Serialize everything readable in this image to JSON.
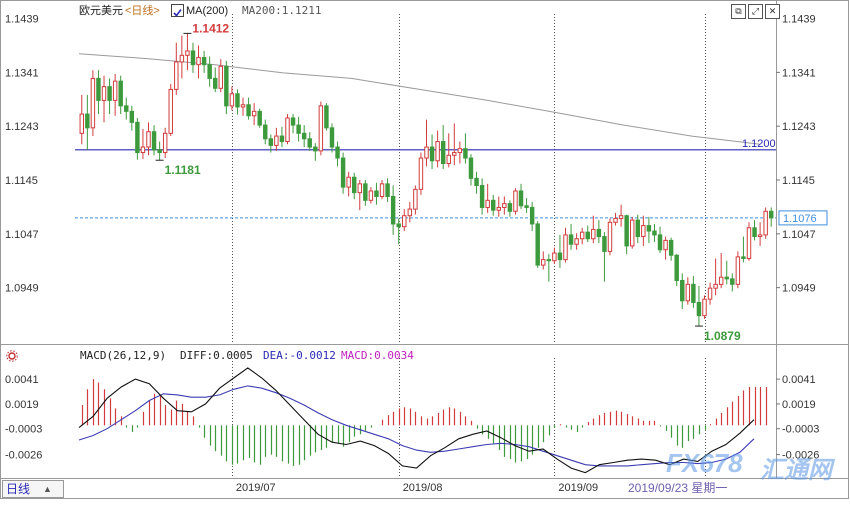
{
  "header": {
    "symbol": "欧元美元",
    "period_tag": "<日线>",
    "ma_button": "MA(200)",
    "ma_value_text": "MA200:1.1211"
  },
  "macd_header": {
    "label": "MACD(26,12,9)",
    "diff": "DIFF:0.0005",
    "dea": "DEA:-0.0012",
    "macd": "MACD:0.0034"
  },
  "footer": {
    "period_button": "日线",
    "current_date": "2019/09/23 星期一",
    "watermark_brand": "FX678",
    "watermark_cn": "汇通网"
  },
  "colors": {
    "up": "#d23c3c",
    "down": "#3c9a3c",
    "ma": "#9a9a9a",
    "hline": "#2a2ab4",
    "current_price": "#3f8fe0",
    "diff_line": "#111111",
    "dea_line": "#3c3cb4",
    "high_label": "#d23c3c",
    "low_label": "#3c9a3c"
  },
  "chart_data": [
    {
      "type": "candlestick",
      "title": "欧元美元 日线",
      "y_ticks": [
        "1.1439",
        "1.1341",
        "1.1243",
        "1.1145",
        "1.1047",
        "1.0949"
      ],
      "ylim": [
        1.085,
        1.144
      ],
      "x_ticks": [
        "2019/07",
        "2019/08",
        "2019/09"
      ],
      "x_tick_index": [
        27,
        57,
        85
      ],
      "vgrid_index": [
        27,
        57,
        85,
        112
      ],
      "annotations": {
        "high": {
          "label": "1.1412",
          "value": 1.1412,
          "index": 19
        },
        "low_early": {
          "label": "1.1181",
          "value": 1.1181,
          "index": 14
        },
        "low": {
          "label": "1.0879",
          "value": 1.0879,
          "index": 111
        },
        "h_line": {
          "label": "1.1200",
          "value": 1.12
        },
        "current": {
          "label": "1.1076",
          "value": 1.1076
        }
      },
      "ma200": [
        1.1375,
        1.1366,
        1.1355,
        1.134,
        1.133,
        1.131,
        1.129,
        1.1268,
        1.1245,
        1.1225,
        1.121
      ],
      "candles": [
        [
          1.123,
          1.13,
          1.121,
          1.1265
        ],
        [
          1.1265,
          1.13,
          1.12,
          1.124
        ],
        [
          1.124,
          1.1345,
          1.1225,
          1.133
        ],
        [
          1.133,
          1.1345,
          1.1265,
          1.129
        ],
        [
          1.129,
          1.1335,
          1.125,
          1.1315
        ],
        [
          1.1315,
          1.133,
          1.1265,
          1.129
        ],
        [
          1.129,
          1.1338,
          1.1262,
          1.1325
        ],
        [
          1.1325,
          1.1335,
          1.1265,
          1.128
        ],
        [
          1.128,
          1.1295,
          1.1255,
          1.127
        ],
        [
          1.127,
          1.128,
          1.1235,
          1.125
        ],
        [
          1.125,
          1.1258,
          1.1182,
          1.1195
        ],
        [
          1.1195,
          1.1238,
          1.1183,
          1.1205
        ],
        [
          1.1205,
          1.125,
          1.119,
          1.1233
        ],
        [
          1.1233,
          1.1245,
          1.119,
          1.12
        ],
        [
          1.12,
          1.1215,
          1.1181,
          1.1195
        ],
        [
          1.1195,
          1.124,
          1.1185,
          1.123
        ],
        [
          1.123,
          1.132,
          1.1225,
          1.131
        ],
        [
          1.131,
          1.1395,
          1.13,
          1.136
        ],
        [
          1.136,
          1.1408,
          1.133,
          1.1372
        ],
        [
          1.1372,
          1.1412,
          1.1345,
          1.138
        ],
        [
          1.138,
          1.1395,
          1.134,
          1.1355
        ],
        [
          1.1355,
          1.139,
          1.133,
          1.1368
        ],
        [
          1.1368,
          1.138,
          1.134,
          1.1355
        ],
        [
          1.1355,
          1.137,
          1.1315,
          1.133
        ],
        [
          1.133,
          1.135,
          1.1305,
          1.1312
        ],
        [
          1.1312,
          1.1365,
          1.1305,
          1.1352
        ],
        [
          1.1352,
          1.1362,
          1.1265,
          1.128
        ],
        [
          1.128,
          1.1315,
          1.1272,
          1.1302
        ],
        [
          1.1302,
          1.131,
          1.1264,
          1.1278
        ],
        [
          1.1278,
          1.1295,
          1.1262,
          1.1282
        ],
        [
          1.1282,
          1.1295,
          1.1255,
          1.1262
        ],
        [
          1.1262,
          1.1285,
          1.1245,
          1.127
        ],
        [
          1.127,
          1.1275,
          1.124,
          1.1245
        ],
        [
          1.1245,
          1.1255,
          1.121,
          1.122
        ],
        [
          1.122,
          1.1228,
          1.1195,
          1.1208
        ],
        [
          1.1208,
          1.124,
          1.1198,
          1.1225
        ],
        [
          1.1225,
          1.1242,
          1.1205,
          1.1215
        ],
        [
          1.1215,
          1.1265,
          1.121,
          1.1258
        ],
        [
          1.1258,
          1.1265,
          1.123,
          1.1245
        ],
        [
          1.1245,
          1.126,
          1.1215,
          1.123
        ],
        [
          1.123,
          1.1245,
          1.1205,
          1.122
        ],
        [
          1.122,
          1.1232,
          1.1198,
          1.1205
        ],
        [
          1.1205,
          1.1212,
          1.118,
          1.1198
        ],
        [
          1.1198,
          1.1288,
          1.119,
          1.128
        ],
        [
          1.128,
          1.1285,
          1.1235,
          1.124
        ],
        [
          1.124,
          1.1248,
          1.1195,
          1.1205
        ],
        [
          1.1205,
          1.1215,
          1.117,
          1.1185
        ],
        [
          1.1185,
          1.1195,
          1.112,
          1.1132
        ],
        [
          1.1132,
          1.116,
          1.1115,
          1.115
        ],
        [
          1.115,
          1.1158,
          1.111,
          1.1122
        ],
        [
          1.1122,
          1.1145,
          1.109,
          1.1138
        ],
        [
          1.1138,
          1.1145,
          1.1098,
          1.1108
        ],
        [
          1.1108,
          1.1132,
          1.1102,
          1.1125
        ],
        [
          1.1125,
          1.114,
          1.11,
          1.1115
        ],
        [
          1.1115,
          1.1145,
          1.111,
          1.1138
        ],
        [
          1.1138,
          1.1148,
          1.1105,
          1.1115
        ],
        [
          1.1115,
          1.1135,
          1.1045,
          1.1065
        ],
        [
          1.1065,
          1.1075,
          1.1028,
          1.106
        ],
        [
          1.106,
          1.1092,
          1.1052,
          1.108
        ],
        [
          1.108,
          1.1105,
          1.1068,
          1.1092
        ],
        [
          1.1092,
          1.1135,
          1.1082,
          1.1128
        ],
        [
          1.1128,
          1.1195,
          1.1118,
          1.1185
        ],
        [
          1.1185,
          1.1255,
          1.117,
          1.1205
        ],
        [
          1.1205,
          1.1228,
          1.1165,
          1.118
        ],
        [
          1.118,
          1.1235,
          1.1168,
          1.1215
        ],
        [
          1.1215,
          1.1245,
          1.1165,
          1.1175
        ],
        [
          1.1175,
          1.123,
          1.1168,
          1.119
        ],
        [
          1.119,
          1.1248,
          1.1172,
          1.1195
        ],
        [
          1.1195,
          1.1215,
          1.1175,
          1.1202
        ],
        [
          1.1202,
          1.123,
          1.1175,
          1.1185
        ],
        [
          1.1185,
          1.1192,
          1.1135,
          1.1148
        ],
        [
          1.1148,
          1.116,
          1.112,
          1.1135
        ],
        [
          1.1135,
          1.1148,
          1.1082,
          1.1095
        ],
        [
          1.1095,
          1.1138,
          1.1085,
          1.1108
        ],
        [
          1.1108,
          1.1118,
          1.108,
          1.109
        ],
        [
          1.109,
          1.1115,
          1.1078,
          1.1095
        ],
        [
          1.1095,
          1.1115,
          1.1082,
          1.1102
        ],
        [
          1.1102,
          1.1108,
          1.1078,
          1.1088
        ],
        [
          1.1088,
          1.113,
          1.1082,
          1.1125
        ],
        [
          1.1125,
          1.1138,
          1.1092,
          1.1098
        ],
        [
          1.1098,
          1.1112,
          1.1085,
          1.1095
        ],
        [
          1.1095,
          1.1105,
          1.1052,
          1.1065
        ],
        [
          1.1065,
          1.107,
          1.0985,
          1.099
        ],
        [
          1.099,
          1.1015,
          1.0982,
          1.1
        ],
        [
          1.1,
          1.101,
          1.096,
          1.0998
        ],
        [
          1.0998,
          1.1022,
          1.0992,
          1.1012
        ],
        [
          1.1012,
          1.1045,
          1.0985,
          1.1
        ],
        [
          1.1,
          1.1058,
          1.0995,
          1.1045
        ],
        [
          1.1045,
          1.1065,
          1.1018,
          1.1028
        ],
        [
          1.1028,
          1.1048,
          1.1018,
          1.1038
        ],
        [
          1.1038,
          1.1058,
          1.1028,
          1.105
        ],
        [
          1.105,
          1.1062,
          1.1032,
          1.1038
        ],
        [
          1.1038,
          1.108,
          1.103,
          1.1055
        ],
        [
          1.1055,
          1.1072,
          1.103,
          1.1042
        ],
        [
          1.1042,
          1.105,
          1.096,
          1.1015
        ],
        [
          1.1015,
          1.1075,
          1.1008,
          1.1068
        ],
        [
          1.1068,
          1.1085,
          1.1062,
          1.1075
        ],
        [
          1.1075,
          1.11,
          1.106,
          1.108
        ],
        [
          1.108,
          1.1082,
          1.101,
          1.1025
        ],
        [
          1.1025,
          1.1078,
          1.102,
          1.1072
        ],
        [
          1.1072,
          1.1082,
          1.103,
          1.1042
        ],
        [
          1.1042,
          1.108,
          1.1025,
          1.1062
        ],
        [
          1.1062,
          1.1078,
          1.103,
          1.1052
        ],
        [
          1.1052,
          1.1065,
          1.1032,
          1.1045
        ],
        [
          1.1045,
          1.106,
          1.1012,
          1.1018
        ],
        [
          1.1018,
          1.1042,
          1.1,
          1.1035
        ],
        [
          1.1035,
          1.104,
          1.0998,
          1.1008
        ],
        [
          1.1008,
          1.101,
          1.0952,
          1.0962
        ],
        [
          1.0962,
          1.0975,
          1.091,
          1.0925
        ],
        [
          1.0925,
          1.0968,
          1.0918,
          1.0955
        ],
        [
          1.0955,
          1.097,
          1.0912,
          1.0922
        ],
        [
          1.0922,
          1.0952,
          1.0879,
          1.0898
        ],
        [
          1.0898,
          1.0935,
          1.0892,
          1.0928
        ],
        [
          1.0928,
          1.0958,
          1.0918,
          1.0948
        ],
        [
          1.0948,
          1.1002,
          1.0935,
          1.0955
        ],
        [
          1.0955,
          1.1012,
          1.0948,
          1.0968
        ],
        [
          1.0968,
          1.0998,
          1.0955,
          1.0965
        ],
        [
          1.0965,
          1.0975,
          1.0942,
          1.0955
        ],
        [
          1.0955,
          1.1015,
          1.0948,
          1.1005
        ],
        [
          1.1005,
          1.1042,
          1.0995,
          1.1002
        ],
        [
          1.1002,
          1.1068,
          1.0998,
          1.1058
        ],
        [
          1.1058,
          1.1072,
          1.1035,
          1.1042
        ],
        [
          1.1042,
          1.1068,
          1.1025,
          1.1045
        ],
        [
          1.1045,
          1.1095,
          1.1038,
          1.1088
        ],
        [
          1.1088,
          1.1095,
          1.106,
          1.1076
        ]
      ]
    },
    {
      "type": "macd",
      "title": "MACD(26,12,9)",
      "y_ticks": [
        "0.0041",
        "0.0019",
        "-0.0003",
        "-0.0026"
      ],
      "ylim": [
        -0.0045,
        0.0058
      ],
      "series": [
        {
          "name": "DIFF",
          "values": [
            -0.0002,
            0.0008,
            0.0024,
            0.0034,
            0.0041,
            0.0037,
            0.0024,
            0.0013,
            0.0012,
            0.0019,
            0.0033,
            0.0042,
            0.0051,
            0.0042,
            0.0031,
            0.0018,
            0.0005,
            -0.0008,
            -0.0015,
            -0.0017,
            -0.0014,
            -0.0018,
            -0.0025,
            -0.0036,
            -0.0038,
            -0.0027,
            -0.002,
            -0.0012,
            -0.0008,
            -0.0005,
            -0.0011,
            -0.0018,
            -0.0023,
            -0.0021,
            -0.003,
            -0.0038,
            -0.0042,
            -0.0035,
            -0.0033,
            -0.0031,
            -0.003,
            -0.0031,
            -0.0035,
            -0.003,
            -0.0032,
            -0.0023,
            -0.0017,
            -0.0007,
            0.0005
          ]
        },
        {
          "name": "DEA",
          "values": [
            -0.0013,
            -0.0009,
            -0.0003,
            0.0005,
            0.0013,
            0.0022,
            0.0028,
            0.0027,
            0.0025,
            0.0025,
            0.0027,
            0.0032,
            0.0035,
            0.0033,
            0.0029,
            0.0024,
            0.0018,
            0.0011,
            0.0005,
            0.0,
            -0.0004,
            -0.0008,
            -0.0012,
            -0.0018,
            -0.0022,
            -0.0024,
            -0.0023,
            -0.0021,
            -0.0019,
            -0.0017,
            -0.0016,
            -0.0017,
            -0.0019,
            -0.0023,
            -0.0027,
            -0.0031,
            -0.0035,
            -0.0036,
            -0.0036,
            -0.0036,
            -0.0035,
            -0.0034,
            -0.0033,
            -0.0033,
            -0.0034,
            -0.0033,
            -0.003,
            -0.0024,
            -0.0012
          ]
        },
        {
          "name": "MACD",
          "values": [
            0.0018,
            0.0032,
            0.0041,
            0.0038,
            0.0032,
            0.0024,
            0.0015,
            0.0008,
            -0.0002,
            -0.0006,
            -0.0002,
            0.0012,
            0.0022,
            0.0028,
            0.0026,
            0.0018,
            0.0014,
            0.0022,
            0.0019,
            0.0012,
            0.0008,
            -0.0002,
            -0.0011,
            -0.0018,
            -0.0023,
            -0.0027,
            -0.0032,
            -0.0035,
            -0.0034,
            -0.0031,
            -0.0029,
            -0.0033,
            -0.0035,
            -0.0028,
            -0.0026,
            -0.0028,
            -0.0032,
            -0.0034,
            -0.0036,
            -0.0035,
            -0.0031,
            -0.0027,
            -0.0024,
            -0.0022,
            -0.002,
            -0.0015,
            -0.0016,
            -0.0019,
            -0.0015,
            -0.001,
            -0.0008,
            -0.0005,
            -0.0002,
            0.0,
            0.0005,
            0.0009,
            0.0012,
            0.0015,
            0.0016,
            0.0015,
            0.0012,
            0.0008,
            0.0006,
            0.0008,
            0.0011,
            0.0014,
            0.0016,
            0.0015,
            0.0012,
            0.0008,
            0.0004,
            -0.0003,
            -0.0008,
            -0.0012,
            -0.0016,
            -0.0022,
            -0.0028,
            -0.003,
            -0.0033,
            -0.0032,
            -0.003,
            -0.0026,
            -0.002,
            -0.0015,
            -0.0009,
            -0.0002,
            0.0001,
            -0.0002,
            -0.0004,
            -0.0006,
            -0.0002,
            0.0003,
            0.0006,
            0.0009,
            0.0011,
            0.0012,
            0.0013,
            0.0012,
            0.001,
            0.0008,
            0.0006,
            0.0004,
            0.0004,
            0.0004,
            -0.0001,
            -0.0005,
            -0.0011,
            -0.0018,
            -0.002,
            -0.0014,
            -0.0012,
            -0.0008,
            -0.0004,
            0.0001,
            0.0006,
            0.0011,
            0.0016,
            0.0021,
            0.0026,
            0.0031,
            0.0034,
            0.0034,
            0.0034,
            0.0034
          ]
        }
      ]
    }
  ]
}
